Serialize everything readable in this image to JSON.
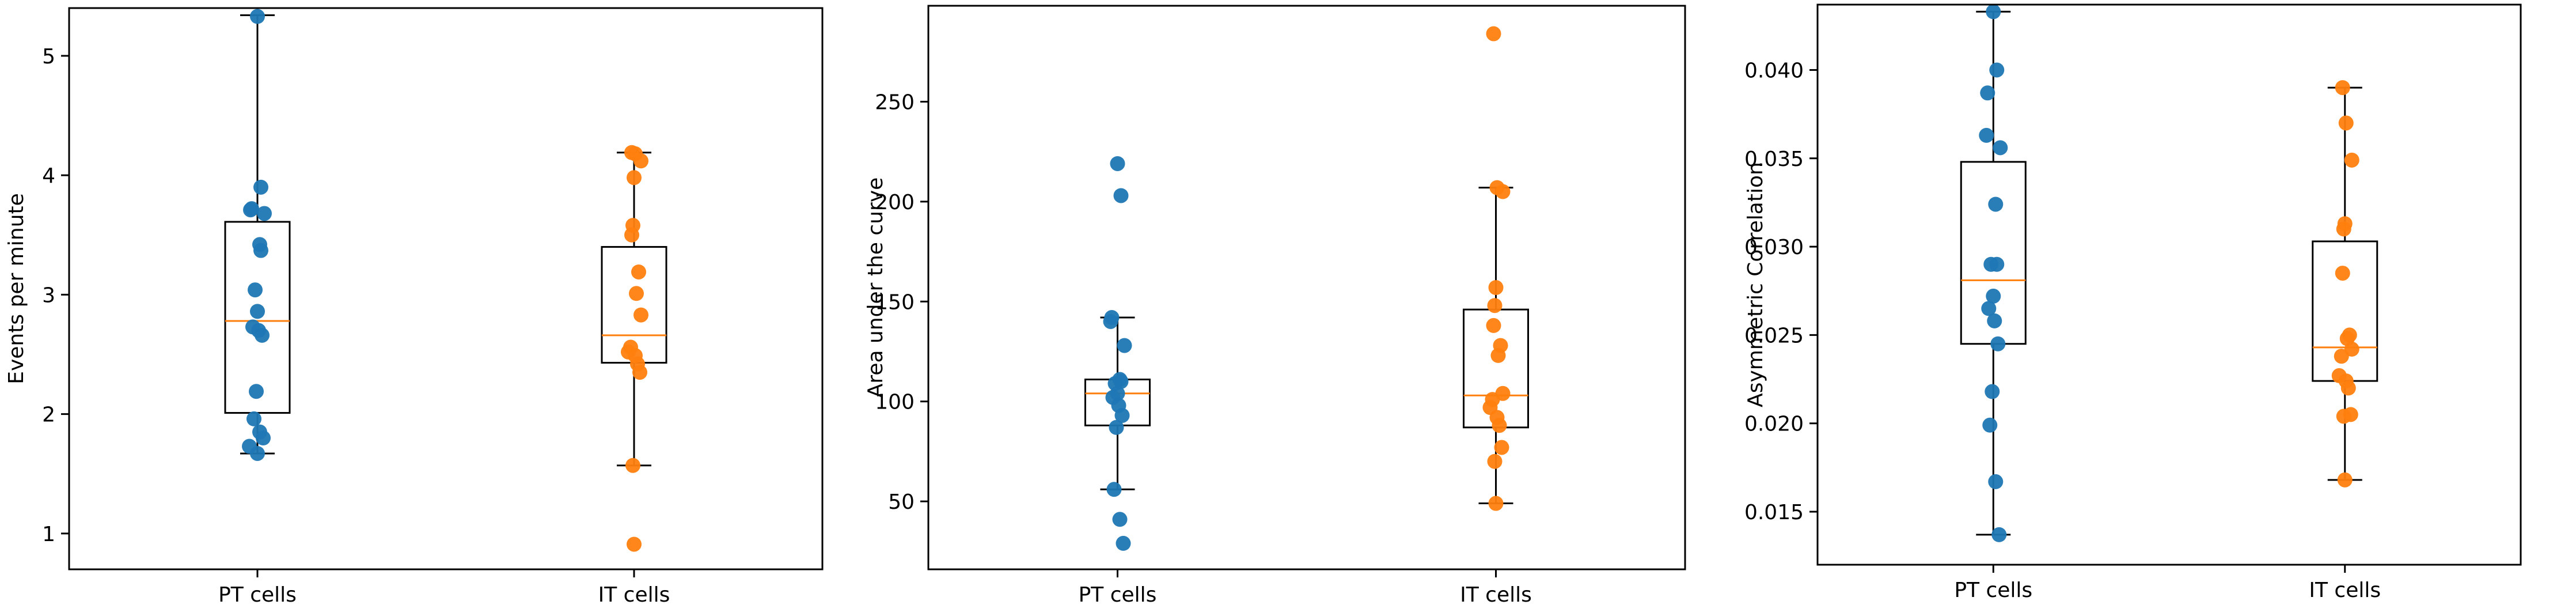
{
  "colors": {
    "pt": "#1f77b4",
    "it": "#ff7f0e",
    "median": "#ff7f0e",
    "axis": "#000000"
  },
  "chart_data": [
    {
      "type": "box",
      "ylabel": "Events per minute",
      "ylim": [
        0.7,
        5.4
      ],
      "yticks": [
        1,
        2,
        3,
        4,
        5
      ],
      "categories": [
        "PT cells",
        "IT cells"
      ],
      "boxes": [
        {
          "category": "PT cells",
          "whisker_low": 1.67,
          "q1": 2.01,
          "median": 2.78,
          "q3": 3.61,
          "whisker_high": 5.34
        },
        {
          "category": "IT cells",
          "whisker_low": 1.57,
          "q1": 2.43,
          "median": 2.66,
          "q3": 3.4,
          "whisker_high": 4.19
        }
      ],
      "series": [
        {
          "name": "PT cells",
          "values": [
            5.33,
            3.9,
            3.72,
            3.71,
            3.68,
            3.42,
            3.37,
            3.04,
            2.86,
            2.73,
            2.7,
            2.66,
            2.19,
            1.96,
            1.85,
            1.8,
            1.73,
            1.67
          ]
        },
        {
          "name": "IT cells",
          "values": [
            4.19,
            4.18,
            4.12,
            3.98,
            3.58,
            3.5,
            3.19,
            3.01,
            2.83,
            2.56,
            2.52,
            2.49,
            2.42,
            2.35,
            1.57,
            0.91
          ]
        }
      ]
    },
    {
      "type": "box",
      "ylabel": "Area under the curve",
      "ylim": [
        16,
        298
      ],
      "yticks": [
        50,
        100,
        150,
        200,
        250
      ],
      "categories": [
        "PT cells",
        "IT cells"
      ],
      "boxes": [
        {
          "category": "PT cells",
          "whisker_low": 56,
          "q1": 88,
          "median": 104,
          "q3": 111,
          "whisker_high": 142
        },
        {
          "category": "IT cells",
          "whisker_low": 49,
          "q1": 87,
          "median": 103,
          "q3": 146,
          "whisker_high": 207
        }
      ],
      "series": [
        {
          "name": "PT cells",
          "values": [
            219,
            203,
            142,
            140,
            128,
            111,
            110,
            109,
            104,
            102,
            98,
            93,
            87,
            56,
            41,
            29
          ]
        },
        {
          "name": "IT cells",
          "values": [
            284,
            207,
            205,
            157,
            148,
            138,
            128,
            123,
            104,
            101,
            97,
            92,
            88,
            77,
            70,
            49
          ]
        }
      ]
    },
    {
      "type": "box",
      "ylabel": "Asymmetric Correlation",
      "ylim": [
        0.012,
        0.0437
      ],
      "yticks": [
        0.015,
        0.02,
        0.025,
        0.03,
        0.035,
        0.04
      ],
      "ytick_labels": [
        "0.015",
        "0.020",
        "0.025",
        "0.030",
        "0.035",
        "0.040"
      ],
      "categories": [
        "PT cells",
        "IT cells"
      ],
      "boxes": [
        {
          "category": "PT cells",
          "whisker_low": 0.0137,
          "q1": 0.0245,
          "median": 0.0281,
          "q3": 0.0348,
          "whisker_high": 0.0433
        },
        {
          "category": "IT cells",
          "whisker_low": 0.0168,
          "q1": 0.0224,
          "median": 0.0243,
          "q3": 0.0303,
          "whisker_high": 0.039
        }
      ],
      "series": [
        {
          "name": "PT cells",
          "values": [
            0.0433,
            0.04,
            0.0387,
            0.0363,
            0.0356,
            0.0324,
            0.029,
            0.029,
            0.0272,
            0.0265,
            0.0258,
            0.0245,
            0.0218,
            0.0199,
            0.0167,
            0.0137
          ]
        },
        {
          "name": "IT cells",
          "values": [
            0.039,
            0.037,
            0.0349,
            0.0313,
            0.031,
            0.0285,
            0.025,
            0.0248,
            0.0242,
            0.0238,
            0.0227,
            0.0224,
            0.022,
            0.0205,
            0.0204,
            0.0168
          ]
        }
      ]
    }
  ]
}
